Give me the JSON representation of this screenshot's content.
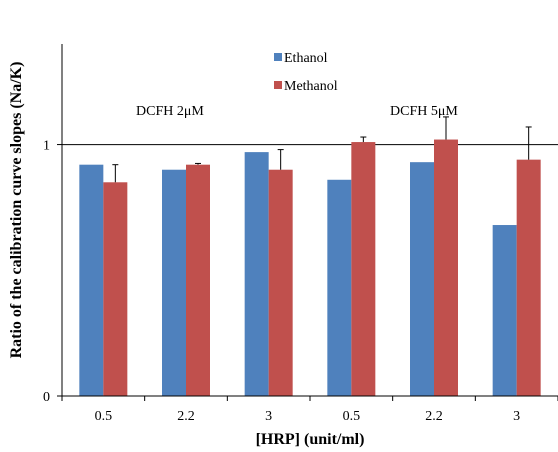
{
  "chart_data": {
    "type": "bar",
    "xlabel": "[HRP] (unit/ml)",
    "ylabel": "Ratio of the calibration curve slopes (Na/K)",
    "ylim": [
      0,
      1.4
    ],
    "yticks": [
      0,
      1
    ],
    "reference_line": 1,
    "grid": false,
    "legend_position": "top-center",
    "categories": [
      "0.5",
      "2.2",
      "3",
      "0.5",
      "2.2",
      "3"
    ],
    "series": [
      {
        "name": "Ethanol",
        "color": "#4f81bd",
        "values": [
          0.92,
          0.9,
          0.97,
          0.86,
          0.93,
          0.68
        ],
        "errors": [
          null,
          null,
          null,
          null,
          null,
          null
        ]
      },
      {
        "name": "Methanol",
        "color": "#c0504d",
        "values": [
          0.85,
          0.92,
          0.9,
          1.01,
          1.02,
          0.94
        ],
        "errors": [
          0.07,
          0.005,
          0.08,
          0.02,
          0.09,
          0.13
        ]
      }
    ],
    "annotations": [
      {
        "text": "DCFH 2μM",
        "group": "left"
      },
      {
        "text": "DCFH 5μM",
        "group": "right"
      }
    ]
  }
}
